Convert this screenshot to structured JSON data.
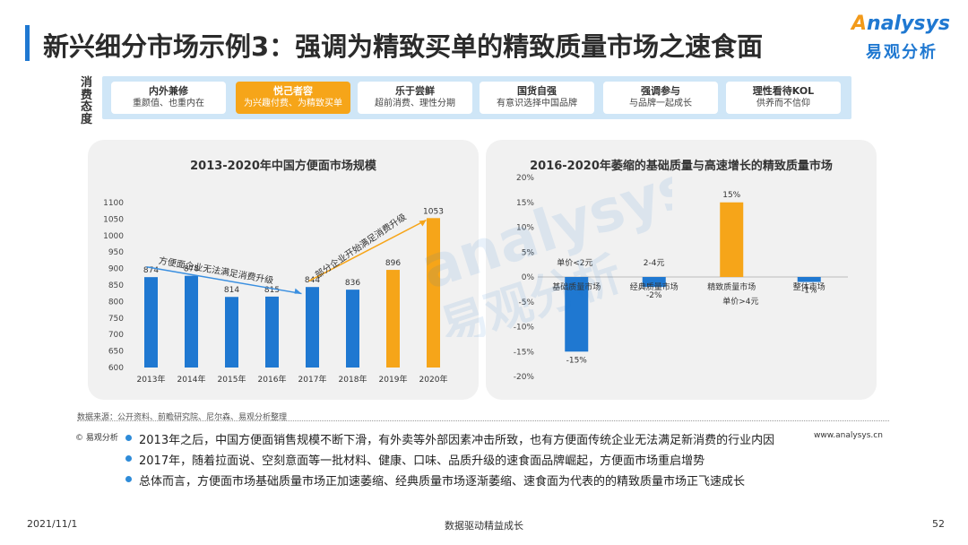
{
  "page": {
    "title": "新兴细分市场示例3：强调为精致买单的精致质量市场之速食面",
    "logo_en": "nalysys",
    "logo_en_a": "A",
    "logo_cn": "易观分析",
    "attitude_label": "消费态度"
  },
  "attitudes": [
    {
      "title": "内外兼修",
      "sub": "重颜值、也重内在"
    },
    {
      "title": "悦己者容",
      "sub": "为兴趣付费、为精致买单"
    },
    {
      "title": "乐于尝鲜",
      "sub": "超前消费、理性分期"
    },
    {
      "title": "国货自强",
      "sub": "有意识选择中国品牌"
    },
    {
      "title": "强调参与",
      "sub": "与品牌一起成长"
    },
    {
      "title": "理性看待KOL",
      "sub": "供养而不信仰"
    }
  ],
  "chart_data": [
    {
      "type": "bar",
      "title": "2013-2020年中国方便面市场规模",
      "categories": [
        "2013年",
        "2014年",
        "2015年",
        "2016年",
        "2017年",
        "2018年",
        "2019年",
        "2020年"
      ],
      "values": [
        874,
        878,
        814,
        815,
        844,
        836,
        896,
        1053
      ],
      "colors": [
        "#1f78d1",
        "#1f78d1",
        "#1f78d1",
        "#1f78d1",
        "#1f78d1",
        "#1f78d1",
        "#f6a519",
        "#f6a519"
      ],
      "ylim": [
        600,
        1100
      ],
      "yticks": [
        600,
        650,
        700,
        750,
        800,
        850,
        900,
        950,
        1000,
        1050,
        1100
      ],
      "annotations": [
        "方便面企业无法满足消费升级",
        "部分企业开始满足消费升级"
      ],
      "grid": false
    },
    {
      "type": "bar",
      "title": "2016-2020年萎缩的基础质量与高速增长的精致质量市场",
      "categories": [
        "基础质量市场",
        "经典质量市场",
        "精致质量市场",
        "整体市场"
      ],
      "values": [
        -15,
        -2,
        15,
        -1
      ],
      "value_labels": [
        "-15%",
        "-2%",
        "15%",
        "-1%"
      ],
      "colors": [
        "#1f78d1",
        "#1f78d1",
        "#f6a519",
        "#1f78d1"
      ],
      "ylim": [
        -20,
        20
      ],
      "yticks": [
        "-20%",
        "-15%",
        "-10%",
        "-5%",
        "0%",
        "5%",
        "10%",
        "15%",
        "20%"
      ],
      "price_labels": [
        "单价<2元",
        "2-4元",
        "单价>4元"
      ],
      "grid": false
    }
  ],
  "source": "数据来源：公开资料、前瞻研究院、尼尔森、易观分析整理",
  "copyright": "© 易观分析",
  "website": "www.analysys.cn",
  "bullets": [
    "2013年之后，中国方便面销售规模不断下滑，有外卖等外部因素冲击所致，也有方便面传统企业无法满足新消费的行业内因",
    "2017年，随着拉面说、空刻意面等一批材料、健康、口味、品质升级的速食面品牌崛起，方便面市场重启增势",
    "总体而言，方便面市场基础质量市场正加速萎缩、经典质量市场逐渐萎缩、速食面为代表的的精致质量市场正飞速成长"
  ],
  "footer": {
    "date": "2021/11/1",
    "center": "数据驱动精益成长",
    "page": "52"
  },
  "watermark": {
    "en": "analysys",
    "cn": "易观分析"
  }
}
